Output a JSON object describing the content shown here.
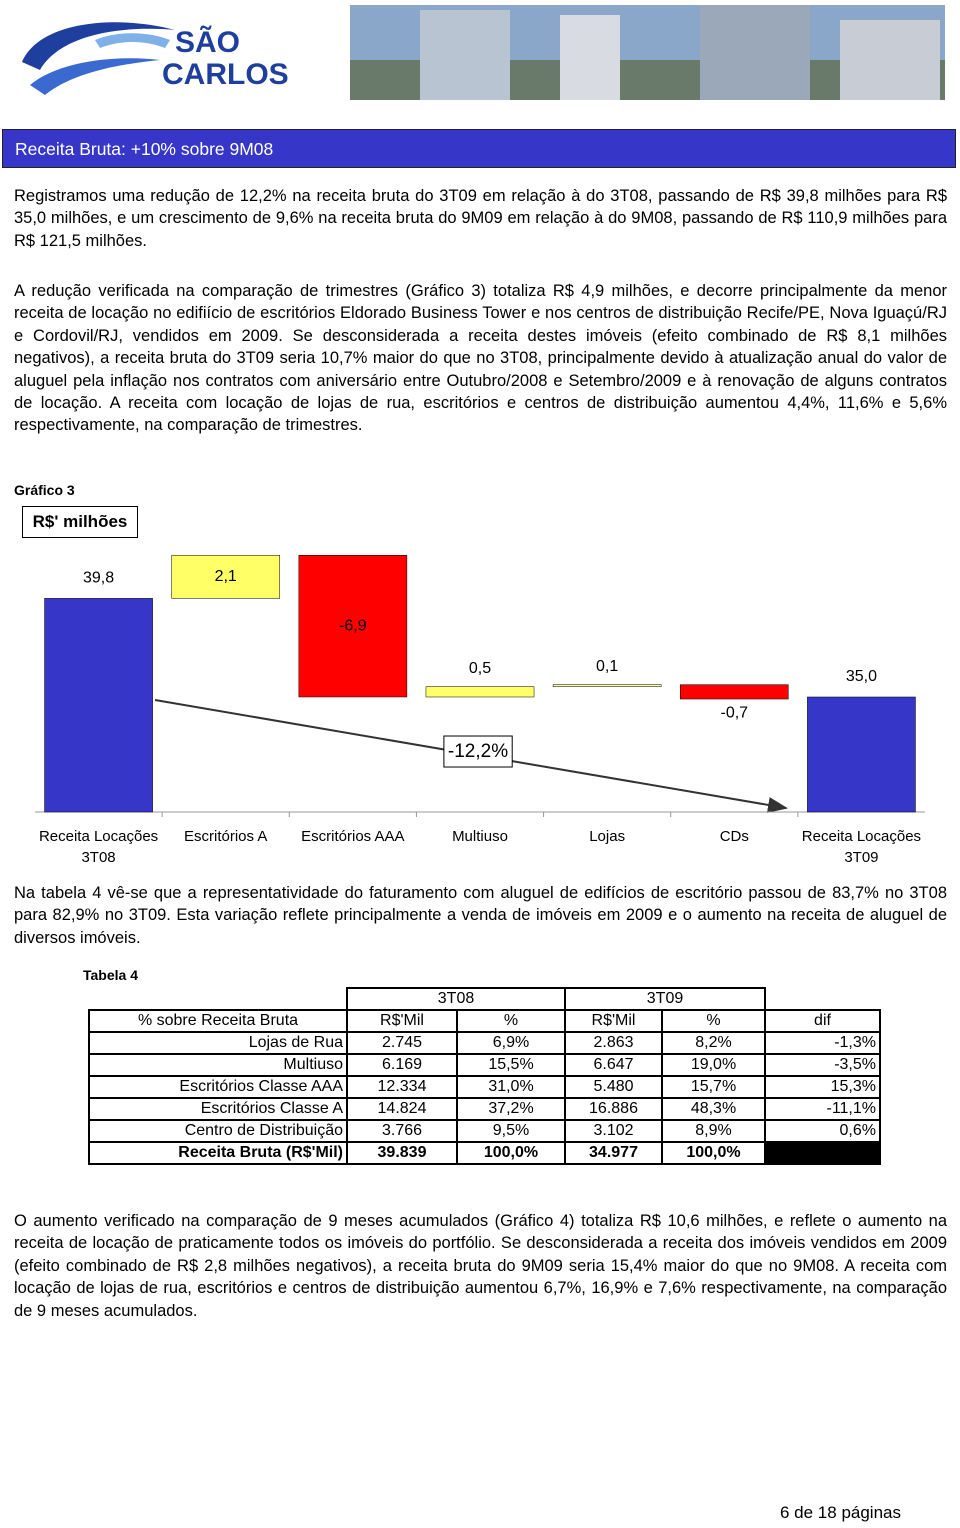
{
  "header": {
    "logo": {
      "line1": "SÃO",
      "line2": "CARLOS"
    }
  },
  "section_title": "Receita Bruta: +10% sobre 9M08",
  "paragraphs": [
    "Registramos uma redução de 12,2% na receita bruta do 3T09 em relação à do 3T08, passando de R$ 39,8 milhões para R$ 35,0 milhões, e um crescimento de 9,6% na receita bruta do 9M09 em relação à do 9M08, passando de R$ 110,9 milhões para R$ 121,5 milhões.",
    "A redução verificada na comparação de trimestres (Gráfico 3) totaliza R$ 4,9 milhões, e decorre principalmente da menor receita de locação no edifiício de escritórios Eldorado Business Tower e nos centros de distribuição Recife/PE, Nova Iguaçú/RJ e Cordovil/RJ, vendidos em 2009. Se desconsiderada a receita destes imóveis (efeito combinado de R$ 8,1 milhões negativos), a receita bruta do 3T09 seria 10,7% maior do que no 3T08, principalmente devido à atualização anual do valor de aluguel pela inflação nos contratos com aniversário entre Outubro/2008 e Setembro/2009 e à renovação de alguns contratos de locação. A receita com locação de lojas de rua, escritórios e centros de distribuição aumentou 4,4%, 11,6% e 5,6% respectivamente, na comparação de trimestres.",
    "Na tabela 4 vê-se que a representatividade do faturamento com aluguel de edifícios de escritório passou de 83,7% no 3T08 para 82,9% no 3T09. Esta variação reflete principalmente a venda de imóveis em 2009 e o aumento na receita de aluguel de diversos imóveis.",
    "O aumento verificado na comparação de 9 meses acumulados (Gráfico 4) totaliza R$ 10,6 milhões, e reflete o aumento na receita de locação de praticamente todos os imóveis do portfólio. Se desconsiderada a receita dos imóveis vendidos em 2009 (efeito combinado de R$ 2,8 milhões negativos), a receita bruta do 9M09 seria 15,4% maior do que no 9M08. A receita com locação de lojas de rua, escritórios e centros de distribuição aumentou 6,7%, 16,9% e 7,6% respectivamente, na comparação de 9 meses acumulados."
  ],
  "chart_data": {
    "type": "waterfall",
    "title": "Gráfico 3",
    "subtitle": "R$' milhões",
    "categories": [
      "Receita Locações 3T08",
      "Escritórios A",
      "Escritórios AAA",
      "Multiuso",
      "Lojas",
      "CDs",
      "Receita Locações 3T09"
    ],
    "values": [
      39.8,
      2.1,
      -6.9,
      0.5,
      0.1,
      -0.7,
      35.0
    ],
    "value_labels": [
      "39,8",
      "2,1",
      "-6,9",
      "0,5",
      "0,1",
      "-0,7",
      "35,0"
    ],
    "colors": [
      "#3636c8",
      "#ffff66",
      "#ff0000",
      "#ffff66",
      "#ffff99",
      "#ff0000",
      "#3636c8"
    ],
    "annotation": "-12,2%",
    "ylim": [
      29.4,
      42.4
    ]
  },
  "table": {
    "title": "Tabela 4",
    "head1": [
      "3T08",
      "3T09"
    ],
    "head2": [
      "% sobre Receita Bruta",
      "R$'Mil",
      "%",
      "R$'Mil",
      "%",
      "dif"
    ],
    "rows": [
      [
        "Lojas de Rua",
        "2.745",
        "6,9%",
        "2.863",
        "8,2%",
        "-1,3%"
      ],
      [
        "Multiuso",
        "6.169",
        "15,5%",
        "6.647",
        "19,0%",
        "-3,5%"
      ],
      [
        "Escritórios Classe AAA",
        "12.334",
        "31,0%",
        "5.480",
        "15,7%",
        "15,3%"
      ],
      [
        "Escritórios Classe A",
        "14.824",
        "37,2%",
        "16.886",
        "48,3%",
        "-11,1%"
      ],
      [
        "Centro de Distribuição",
        "3.766",
        "9,5%",
        "3.102",
        "8,9%",
        "0,6%"
      ],
      [
        "Receita Bruta (R$'Mil)",
        "39.839",
        "100,0%",
        "34.977",
        "100,0%"
      ]
    ]
  },
  "footer": "6 de 18 páginas"
}
